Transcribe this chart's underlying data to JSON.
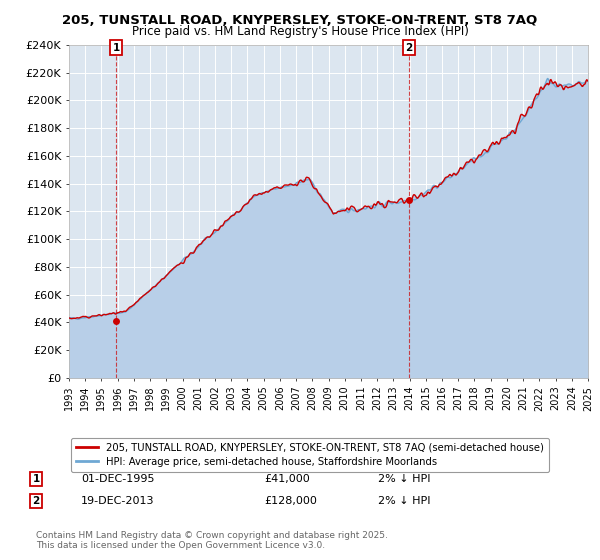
{
  "title": "205, TUNSTALL ROAD, KNYPERSLEY, STOKE-ON-TRENT, ST8 7AQ",
  "subtitle": "Price paid vs. HM Land Registry's House Price Index (HPI)",
  "ylim": [
    0,
    240000
  ],
  "yticks": [
    0,
    20000,
    40000,
    60000,
    80000,
    100000,
    120000,
    140000,
    160000,
    180000,
    200000,
    220000,
    240000
  ],
  "ytick_labels": [
    "£0",
    "£20K",
    "£40K",
    "£60K",
    "£80K",
    "£100K",
    "£120K",
    "£140K",
    "£160K",
    "£180K",
    "£200K",
    "£220K",
    "£240K"
  ],
  "background_color": "#ffffff",
  "plot_bg_color": "#dce6f0",
  "grid_color": "#ffffff",
  "hpi_line_color": "#6fa8d4",
  "price_line_color": "#cc0000",
  "hpi_fill_color": "#b8cfe8",
  "purchase1_x": 1995.92,
  "purchase1_y": 41000,
  "purchase2_x": 2013.96,
  "purchase2_y": 128000,
  "purchase1_label": "01-DEC-1995",
  "purchase2_label": "19-DEC-2013",
  "purchase1_price": "£41,000",
  "purchase2_price": "£128,000",
  "purchase1_hpi": "2% ↓ HPI",
  "purchase2_hpi": "2% ↓ HPI",
  "legend_line1": "205, TUNSTALL ROAD, KNYPERSLEY, STOKE-ON-TRENT, ST8 7AQ (semi-detached house)",
  "legend_line2": "HPI: Average price, semi-detached house, Staffordshire Moorlands",
  "footer": "Contains HM Land Registry data © Crown copyright and database right 2025.\nThis data is licensed under the Open Government Licence v3.0.",
  "xmin": 1993,
  "xmax": 2025
}
